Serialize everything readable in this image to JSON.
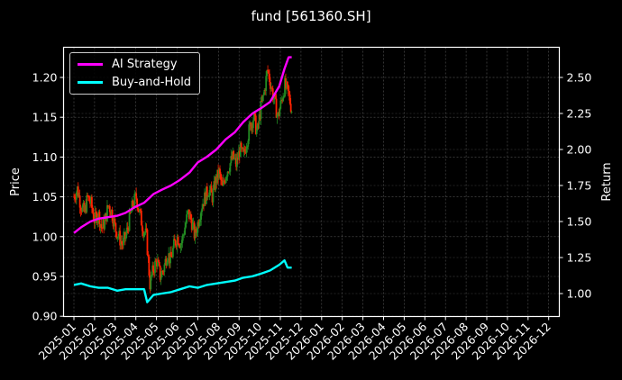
{
  "chart_data": {
    "type": "line",
    "title": "fund [561360.SH]",
    "xlabel": "",
    "ylabel_left": "Price",
    "ylabel_right": "Return",
    "ylim_left": [
      0.895,
      1.24
    ],
    "ylim_right": [
      0.84,
      2.7
    ],
    "grid": true,
    "legend_position": "upper left",
    "x_tick_labels": [
      "2025-01",
      "2025-02",
      "2025-03",
      "2025-04",
      "2025-05",
      "2025-06",
      "2025-07",
      "2025-08",
      "2025-09",
      "2025-10",
      "2025-11",
      "2025-12",
      "2026-01",
      "2026-02",
      "2026-03",
      "2026-04",
      "2026-05",
      "2026-06",
      "2026-07",
      "2026-08",
      "2026-09",
      "2026-10",
      "2026-11",
      "2026-12"
    ],
    "y_left_ticks": [
      "0.90",
      "0.95",
      "1.00",
      "1.05",
      "1.10",
      "1.15",
      "1.20"
    ],
    "y_right_ticks": [
      "1.00",
      "1.25",
      "1.50",
      "1.75",
      "2.00",
      "2.25",
      "2.50"
    ],
    "series": [
      {
        "name": "AI Strategy",
        "axis": "right",
        "color": "#ff00ff",
        "x_month_index": [
          0.0,
          0.35,
          0.8,
          1.2,
          1.65,
          2.1,
          2.5,
          2.95,
          3.4,
          3.85,
          4.25,
          4.7,
          5.15,
          5.6,
          6.0,
          6.45,
          6.9,
          7.35,
          7.8,
          8.2,
          8.65,
          9.1,
          9.5,
          9.95,
          10.2,
          10.4,
          10.55
        ],
        "values": [
          1.42,
          1.46,
          1.5,
          1.52,
          1.53,
          1.54,
          1.56,
          1.6,
          1.63,
          1.69,
          1.72,
          1.75,
          1.79,
          1.84,
          1.91,
          1.95,
          2.0,
          2.07,
          2.12,
          2.19,
          2.25,
          2.29,
          2.33,
          2.44,
          2.56,
          2.64,
          2.64
        ]
      },
      {
        "name": "Buy-and-Hold",
        "axis": "right",
        "color": "#00ffff",
        "x_month_index": [
          0.0,
          0.35,
          0.8,
          1.2,
          1.65,
          2.1,
          2.5,
          2.95,
          3.4,
          3.55,
          3.85,
          4.25,
          4.7,
          5.15,
          5.6,
          6.0,
          6.45,
          6.9,
          7.35,
          7.8,
          8.2,
          8.65,
          9.1,
          9.5,
          9.95,
          10.2,
          10.35,
          10.55
        ],
        "values": [
          1.06,
          1.07,
          1.05,
          1.04,
          1.04,
          1.02,
          1.03,
          1.03,
          1.03,
          0.94,
          0.99,
          1.0,
          1.01,
          1.03,
          1.05,
          1.04,
          1.06,
          1.07,
          1.08,
          1.09,
          1.11,
          1.12,
          1.14,
          1.16,
          1.2,
          1.23,
          1.18,
          1.18
        ]
      }
    ],
    "candles": {
      "up_color": "#228b22",
      "down_color": "#ff2200",
      "x_month_index_start": 0.0,
      "x_month_index_end": 10.55,
      "close_path": [
        1.05,
        1.06,
        1.04,
        1.03,
        1.05,
        1.04,
        1.02,
        1.03,
        1.01,
        1.02,
        1.04,
        1.03,
        1.01,
        1.0,
        0.99,
        1.0,
        1.02,
        1.04,
        1.05,
        1.03,
        1.01,
        1.0,
        0.94,
        0.96,
        0.97,
        0.95,
        0.96,
        0.98,
        0.97,
        0.99,
        1.0,
        0.99,
        1.01,
        1.03,
        1.02,
        1.0,
        1.02,
        1.04,
        1.05,
        1.06,
        1.05,
        1.07,
        1.08,
        1.06,
        1.08,
        1.09,
        1.1,
        1.09,
        1.11,
        1.1,
        1.12,
        1.14,
        1.15,
        1.13,
        1.16,
        1.18,
        1.21,
        1.19,
        1.17,
        1.15,
        1.17,
        1.19,
        1.18,
        1.16
      ]
    }
  }
}
